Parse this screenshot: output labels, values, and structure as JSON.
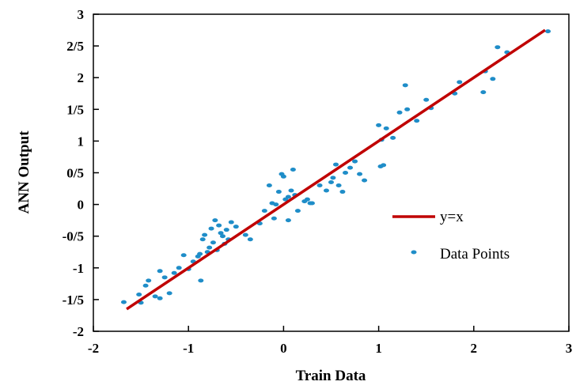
{
  "chart_data": {
    "type": "scatter",
    "xlabel": "Train Data",
    "ylabel": "ANN Output",
    "xlim": [
      -2,
      3
    ],
    "ylim": [
      -2,
      3
    ],
    "x_ticks": [
      -2,
      -1,
      0,
      1,
      2,
      3
    ],
    "x_tick_labels": [
      "-2",
      "-1",
      "0",
      "1",
      "2",
      "3"
    ],
    "y_ticks": [
      3,
      2.5,
      2,
      1.5,
      1,
      0.5,
      0,
      -0.5,
      -1,
      -1.5,
      -2
    ],
    "y_tick_labels": [
      "3",
      "2/5",
      "2",
      "1/5",
      "1",
      "0/5",
      "0",
      "-0/5",
      "-1",
      "-1/5",
      "-2"
    ],
    "grid": false,
    "legend_position": "right",
    "series": [
      {
        "name": "y=x",
        "type": "line",
        "color": "#c00000",
        "x": [
          -1.65,
          2.75
        ],
        "y": [
          -1.65,
          2.75
        ]
      },
      {
        "name": "Data Points",
        "type": "scatter",
        "color": "#1f8dc8",
        "points": [
          [
            -1.68,
            -1.54
          ],
          [
            -1.52,
            -1.42
          ],
          [
            -1.5,
            -1.55
          ],
          [
            -1.45,
            -1.28
          ],
          [
            -1.42,
            -1.2
          ],
          [
            -1.35,
            -1.45
          ],
          [
            -1.3,
            -1.48
          ],
          [
            -1.3,
            -1.05
          ],
          [
            -1.25,
            -1.15
          ],
          [
            -1.2,
            -1.4
          ],
          [
            -1.15,
            -1.08
          ],
          [
            -1.1,
            -1.0
          ],
          [
            -1.05,
            -0.8
          ],
          [
            -1.0,
            -1.02
          ],
          [
            -0.95,
            -0.9
          ],
          [
            -0.9,
            -0.82
          ],
          [
            -0.88,
            -0.78
          ],
          [
            -0.87,
            -1.2
          ],
          [
            -0.85,
            -0.55
          ],
          [
            -0.83,
            -0.48
          ],
          [
            -0.8,
            -0.75
          ],
          [
            -0.78,
            -0.68
          ],
          [
            -0.76,
            -0.38
          ],
          [
            -0.74,
            -0.6
          ],
          [
            -0.72,
            -0.25
          ],
          [
            -0.7,
            -0.72
          ],
          [
            -0.68,
            -0.33
          ],
          [
            -0.66,
            -0.45
          ],
          [
            -0.64,
            -0.5
          ],
          [
            -0.62,
            -0.62
          ],
          [
            -0.6,
            -0.4
          ],
          [
            -0.58,
            -0.55
          ],
          [
            -0.55,
            -0.28
          ],
          [
            -0.5,
            -0.35
          ],
          [
            -0.4,
            -0.48
          ],
          [
            -0.35,
            -0.55
          ],
          [
            -0.25,
            -0.3
          ],
          [
            -0.2,
            -0.1
          ],
          [
            -0.15,
            0.3
          ],
          [
            -0.12,
            0.02
          ],
          [
            -0.1,
            -0.22
          ],
          [
            -0.08,
            0.0
          ],
          [
            -0.05,
            0.2
          ],
          [
            -0.02,
            0.48
          ],
          [
            0.0,
            0.44
          ],
          [
            0.02,
            0.08
          ],
          [
            0.05,
            0.12
          ],
          [
            0.05,
            -0.25
          ],
          [
            0.08,
            0.22
          ],
          [
            0.1,
            0.55
          ],
          [
            0.12,
            0.15
          ],
          [
            0.15,
            -0.1
          ],
          [
            0.22,
            0.05
          ],
          [
            0.25,
            0.08
          ],
          [
            0.28,
            0.02
          ],
          [
            0.3,
            0.02
          ],
          [
            0.38,
            0.3
          ],
          [
            0.45,
            0.22
          ],
          [
            0.5,
            0.35
          ],
          [
            0.52,
            0.42
          ],
          [
            0.55,
            0.63
          ],
          [
            0.58,
            0.3
          ],
          [
            0.62,
            0.2
          ],
          [
            0.65,
            0.5
          ],
          [
            0.7,
            0.58
          ],
          [
            0.75,
            0.68
          ],
          [
            0.8,
            0.48
          ],
          [
            0.85,
            0.38
          ],
          [
            1.0,
            1.25
          ],
          [
            1.02,
            0.6
          ],
          [
            1.03,
            1.02
          ],
          [
            1.05,
            0.62
          ],
          [
            1.08,
            1.2
          ],
          [
            1.15,
            1.05
          ],
          [
            1.22,
            1.45
          ],
          [
            1.28,
            1.88
          ],
          [
            1.3,
            1.5
          ],
          [
            1.4,
            1.32
          ],
          [
            1.5,
            1.65
          ],
          [
            1.55,
            1.52
          ],
          [
            1.8,
            1.75
          ],
          [
            1.85,
            1.93
          ],
          [
            2.1,
            1.77
          ],
          [
            2.12,
            2.1
          ],
          [
            2.2,
            1.98
          ],
          [
            2.25,
            2.48
          ],
          [
            2.35,
            2.4
          ],
          [
            2.78,
            2.73
          ]
        ]
      }
    ]
  }
}
